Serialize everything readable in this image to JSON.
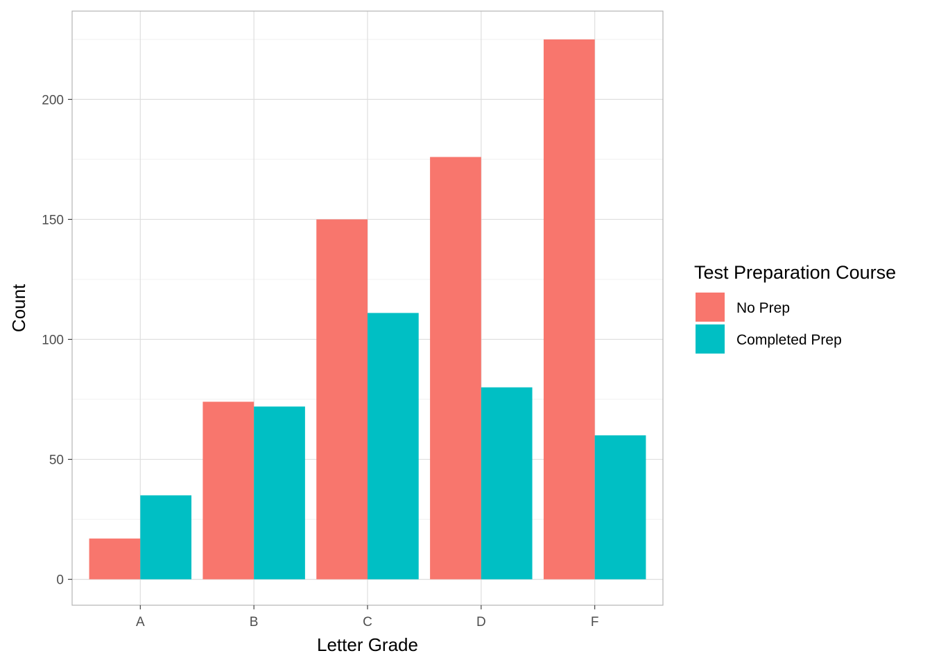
{
  "chart_data": {
    "type": "bar",
    "title": "",
    "xlabel": "Letter Grade",
    "ylabel": "Count",
    "categories": [
      "A",
      "B",
      "C",
      "D",
      "F"
    ],
    "series": [
      {
        "name": "No Prep",
        "color": "#F8766D",
        "values": [
          17,
          74,
          150,
          176,
          225
        ]
      },
      {
        "name": "Completed Prep",
        "color": "#00BFC4",
        "values": [
          35,
          72,
          111,
          80,
          60
        ]
      }
    ],
    "ylim": [
      -10.8,
      236.8
    ],
    "yticks": [
      0,
      50,
      100,
      150,
      200
    ],
    "grid": true,
    "legend": {
      "title": "Test Preparation Course",
      "position": "right"
    }
  }
}
